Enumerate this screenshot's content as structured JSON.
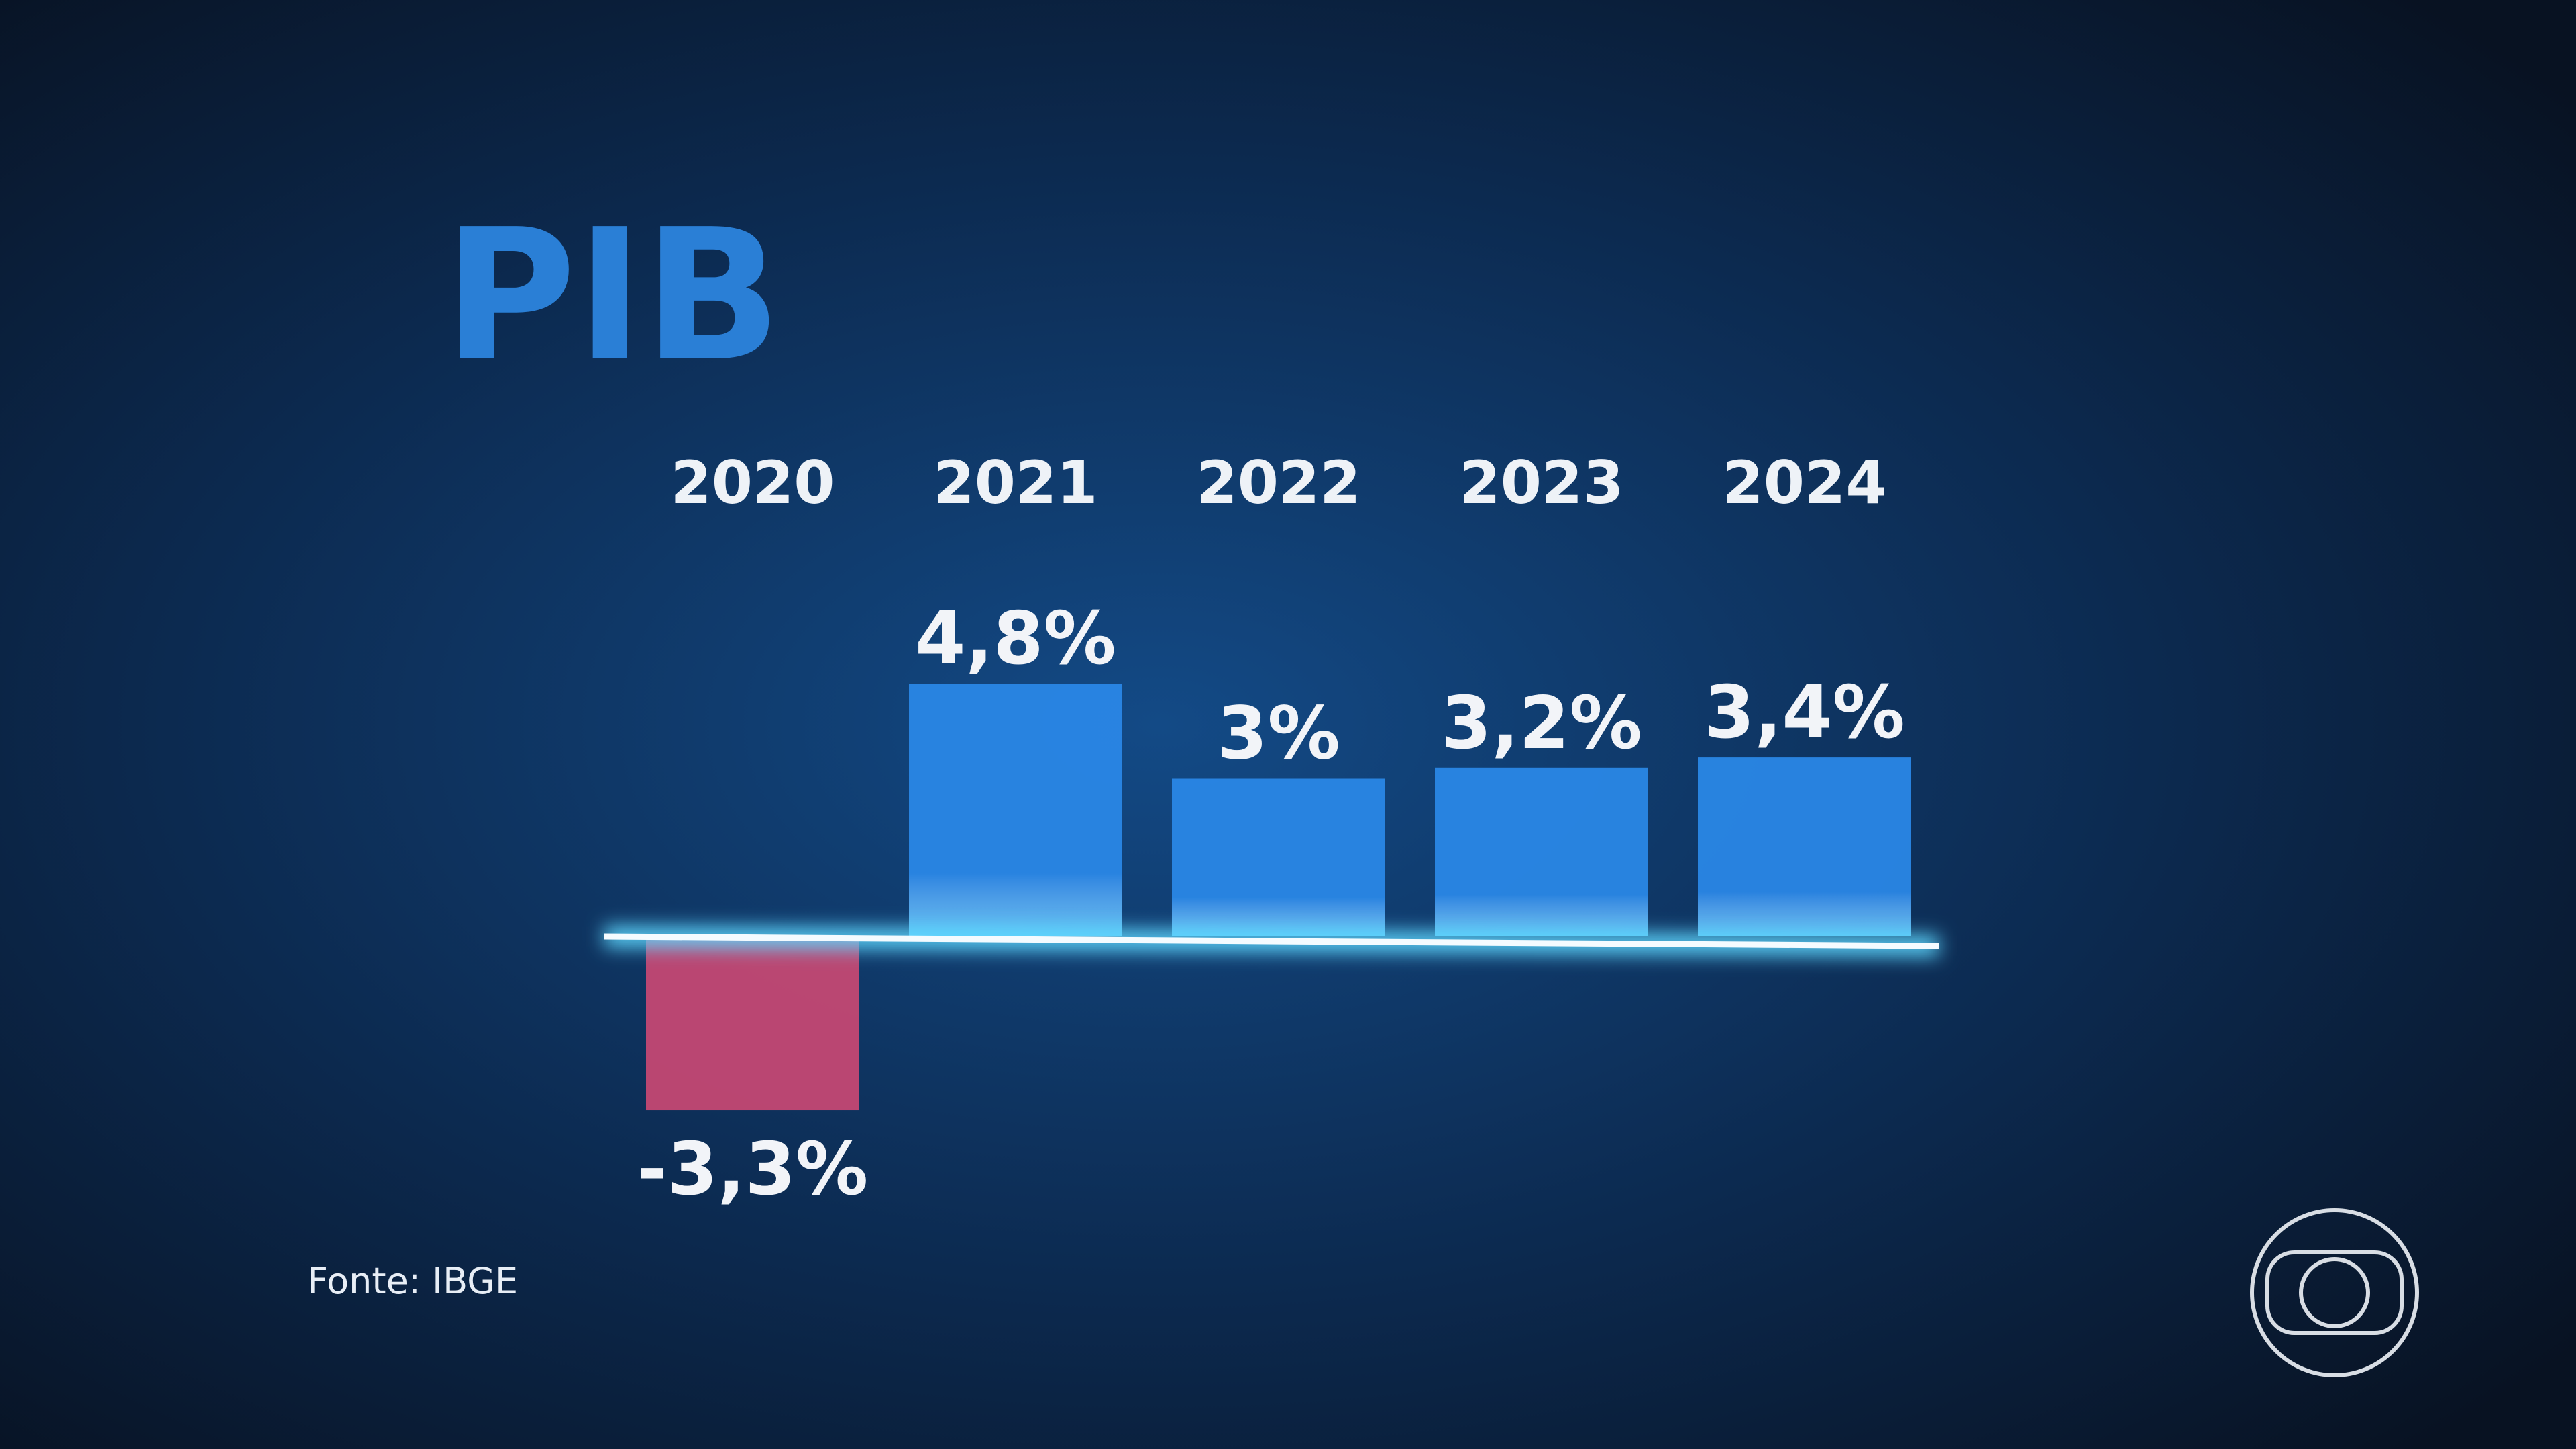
{
  "chart_data": {
    "type": "bar",
    "title": "PIB",
    "categories": [
      "2020",
      "2021",
      "2022",
      "2023",
      "2024"
    ],
    "values": [
      -3.3,
      4.8,
      3,
      3.2,
      3.4
    ],
    "value_labels": [
      "-3,3%",
      "4,8%",
      "3%",
      "3,2%",
      "3,4%"
    ],
    "color": "#2a87e6",
    "negative_color": "#c44873",
    "source": "Fonte: IBGE"
  }
}
